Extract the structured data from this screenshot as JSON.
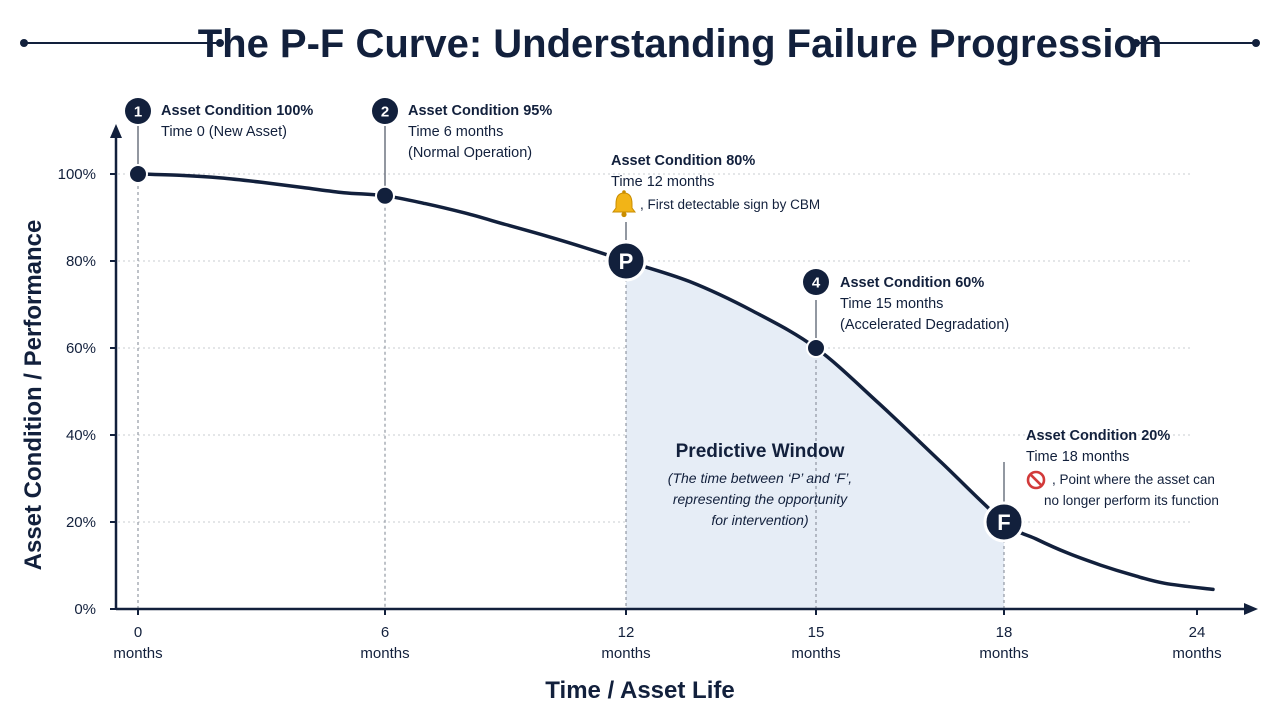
{
  "chart_data": {
    "type": "line",
    "title": "The P-F Curve: Understanding Failure Progression",
    "xlabel": "Time / Asset Life",
    "ylabel": "Asset Condition / Performance",
    "xlim": [
      0,
      25
    ],
    "ylim": [
      0,
      100
    ],
    "x_ticks": [
      {
        "value": 0,
        "label": "0",
        "unit": "months"
      },
      {
        "value": 6,
        "label": "6",
        "unit": "months"
      },
      {
        "value": 12,
        "label": "12",
        "unit": "months"
      },
      {
        "value": 15,
        "label": "15",
        "unit": "months"
      },
      {
        "value": 18,
        "label": "18",
        "unit": "months"
      },
      {
        "value": 24,
        "label": "24",
        "unit": "months"
      }
    ],
    "y_ticks": [
      {
        "value": 0,
        "label": "0%"
      },
      {
        "value": 20,
        "label": "20%"
      },
      {
        "value": 40,
        "label": "40%"
      },
      {
        "value": 60,
        "label": "60%"
      },
      {
        "value": 80,
        "label": "80%"
      },
      {
        "value": 100,
        "label": "100%"
      }
    ],
    "grid": true,
    "curve": {
      "x": [
        0,
        1,
        2,
        3,
        4,
        5,
        6,
        7,
        8,
        9,
        10,
        11,
        12,
        13,
        14,
        15,
        16,
        17,
        18,
        19,
        20,
        21,
        22,
        23,
        24.5
      ],
      "y": [
        100,
        99.7,
        99.1,
        98.1,
        96.9,
        95.7,
        95,
        93.2,
        91,
        88.4,
        85.8,
        83,
        80,
        75.3,
        68.5,
        60,
        47.3,
        33.7,
        20,
        16.1,
        12.8,
        10.1,
        7.8,
        5.9,
        4.5
      ]
    },
    "points": [
      {
        "x": 0,
        "y": 100,
        "badge": "1",
        "style": "dot",
        "heading": "Asset Condition 100%",
        "lines": [
          "Time 0 (New Asset)"
        ]
      },
      {
        "x": 6,
        "y": 95,
        "badge": "2",
        "style": "dot",
        "heading": "Asset Condition 95%",
        "lines": [
          "Time 6 months",
          "(Normal Operation)"
        ]
      },
      {
        "x": 12,
        "y": 80,
        "badge": "P",
        "style": "big",
        "heading": "Asset Condition 80%",
        "lines": [
          "Time 12 months"
        ],
        "icon": "bell-icon",
        "note": ", First detectable sign by CBM"
      },
      {
        "x": 15,
        "y": 60,
        "badge": "4",
        "style": "dot",
        "heading": "Asset Condition 60%",
        "lines": [
          "Time 15 months",
          "(Accelerated Degradation)"
        ]
      },
      {
        "x": 18,
        "y": 20,
        "badge": "F",
        "style": "big",
        "heading": "Asset Condition 20%",
        "lines": [
          "Time 18 months"
        ],
        "icon": "prohibited-icon",
        "note_lines": [
          ", Point where the asset can",
          "no longer perform its function"
        ]
      }
    ],
    "shaded_region": {
      "x_from": 12,
      "x_to": 18,
      "title": "Predictive Window",
      "lines": [
        "(The time between ‘P’ and ‘F’,",
        "representing the opportunity",
        "for intervention)"
      ]
    },
    "colors": {
      "line": "#12203c",
      "fill": "#e6edf6",
      "grid": "#c8ccd2",
      "text": "#12203c",
      "bell": "#f2b417",
      "prohibited": "#d23a3a"
    }
  }
}
